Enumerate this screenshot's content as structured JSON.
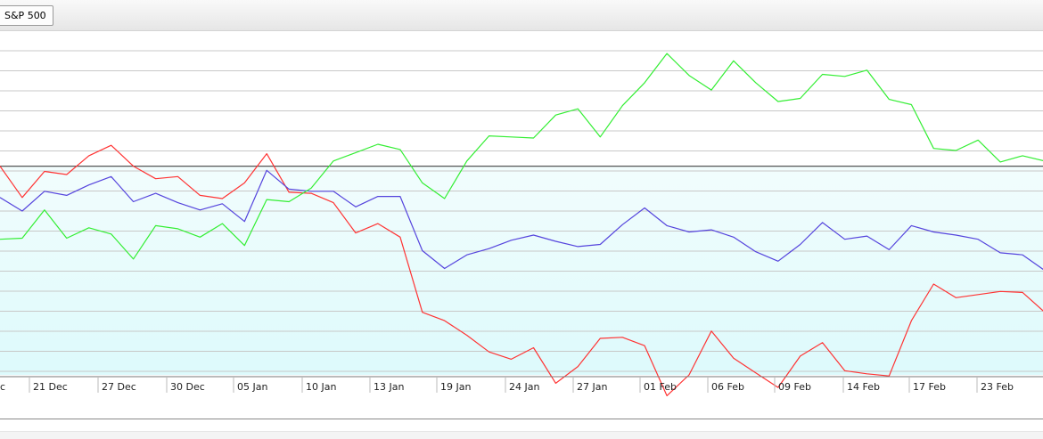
{
  "legend": {
    "label": "S&P 500"
  },
  "chart_data": {
    "type": "line",
    "x_tick_labels": [
      "c",
      "21 Dec",
      "27 Dec",
      "30 Dec",
      "05 Jan",
      "10 Jan",
      "13 Jan",
      "19 Jan",
      "24 Jan",
      "27 Jan",
      "01 Feb",
      "06 Feb",
      "09 Feb",
      "14 Feb",
      "17 Feb",
      "23 Feb"
    ],
    "ylim": [
      -20,
      12
    ],
    "baseline": 0,
    "grid": true,
    "colors": {
      "red": "#ff3333",
      "blue": "#5544dd",
      "green": "#33ee33"
    },
    "series": [
      {
        "color": "red",
        "values": [
          0,
          -3,
          -0.5,
          -0.8,
          1,
          2,
          0,
          -1.2,
          -1,
          -2.8,
          -3.1,
          -1.6,
          1.2,
          -2.5,
          -2.6,
          -3.5,
          -6.4,
          -5.5,
          -6.8,
          -14,
          -14.8,
          -16.2,
          -17.8,
          -18.5,
          -17.4,
          -20.8,
          -19.2,
          -16.5,
          -16.4,
          -17.2,
          -22,
          -20,
          -15.8,
          -18.4,
          -19.8,
          -21.2,
          -18.2,
          -16.9,
          -19.6,
          -19.9,
          -20.1,
          -14.8,
          -11.3,
          -12.6,
          -12.3,
          -12,
          -12.1,
          -14
        ]
      },
      {
        "color": "blue",
        "values": [
          -3,
          -4.3,
          -2.4,
          -2.8,
          -1.8,
          -1,
          -3.4,
          -2.6,
          -3.5,
          -4.2,
          -3.6,
          -5.3,
          -0.4,
          -2.2,
          -2.4,
          -2.4,
          -3.9,
          -2.9,
          -2.9,
          -8.1,
          -9.8,
          -8.5,
          -7.9,
          -7.1,
          -6.6,
          -7.2,
          -7.7,
          -7.5,
          -5.6,
          -4,
          -5.7,
          -6.3,
          -6.1,
          -6.8,
          -8.2,
          -9.1,
          -7.5,
          -5.4,
          -7,
          -6.7,
          -8,
          -5.7,
          -6.3,
          -6.6,
          -7,
          -8.3,
          -8.5,
          -10
        ]
      },
      {
        "color": "green",
        "values": [
          -7,
          -6.9,
          -4.2,
          -6.9,
          -5.9,
          -6.5,
          -8.9,
          -5.7,
          -6,
          -6.8,
          -5.5,
          -7.6,
          -3.2,
          -3.4,
          -2.1,
          0.5,
          1.3,
          2.1,
          1.6,
          -1.6,
          -3.1,
          0.5,
          2.9,
          2.8,
          2.7,
          4.9,
          5.5,
          2.8,
          5.8,
          8,
          10.8,
          8.7,
          7.3,
          10.1,
          8,
          6.2,
          6.5,
          8.8,
          8.6,
          9.2,
          6.4,
          5.9,
          1.7,
          1.5,
          2.5,
          0.4,
          1,
          0.5
        ]
      }
    ]
  }
}
